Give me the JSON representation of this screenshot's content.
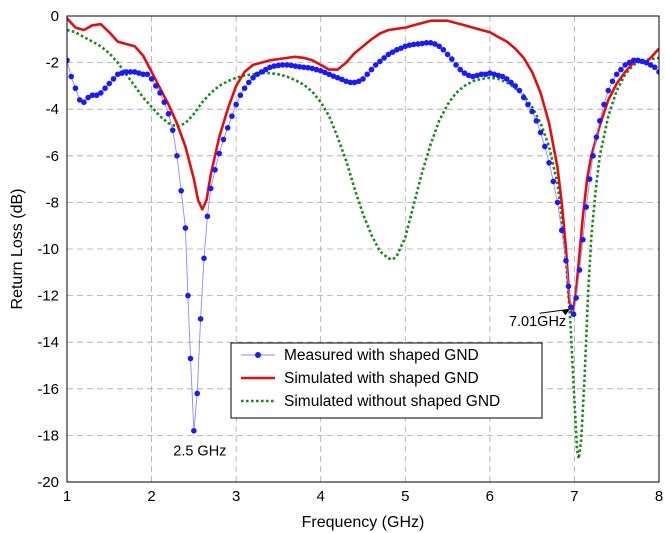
{
  "chart_data": {
    "type": "line",
    "xlabel": "Frequency (GHz)",
    "ylabel": "Return Loss (dB)",
    "xlim": [
      1,
      8
    ],
    "ylim": [
      -20,
      0
    ],
    "xticks": [
      1,
      2,
      3,
      4,
      5,
      6,
      7,
      8
    ],
    "yticks": [
      0,
      -2,
      -4,
      -6,
      -8,
      -10,
      -12,
      -14,
      -16,
      -18,
      -20
    ],
    "grid": true,
    "legend_position": "bottom-center",
    "series": [
      {
        "name": "Measured with shaped GND",
        "style": "dots-thin-line",
        "color": "#1a1aff",
        "points": [
          [
            1.0,
            -1.9
          ],
          [
            1.05,
            -2.6
          ],
          [
            1.1,
            -3.1
          ],
          [
            1.15,
            -3.6
          ],
          [
            1.2,
            -3.7
          ],
          [
            1.25,
            -3.5
          ],
          [
            1.3,
            -3.4
          ],
          [
            1.35,
            -3.4
          ],
          [
            1.4,
            -3.3
          ],
          [
            1.45,
            -3.1
          ],
          [
            1.5,
            -2.9
          ],
          [
            1.55,
            -2.7
          ],
          [
            1.6,
            -2.5
          ],
          [
            1.65,
            -2.45
          ],
          [
            1.7,
            -2.4
          ],
          [
            1.75,
            -2.4
          ],
          [
            1.8,
            -2.4
          ],
          [
            1.85,
            -2.45
          ],
          [
            1.9,
            -2.5
          ],
          [
            1.95,
            -2.5
          ],
          [
            2.0,
            -2.7
          ],
          [
            2.05,
            -3.0
          ],
          [
            2.1,
            -3.3
          ],
          [
            2.15,
            -3.7
          ],
          [
            2.2,
            -4.2
          ],
          [
            2.25,
            -4.9
          ],
          [
            2.3,
            -6.0
          ],
          [
            2.35,
            -7.5
          ],
          [
            2.4,
            -9.1
          ],
          [
            2.43,
            -12.0
          ],
          [
            2.46,
            -14.7
          ],
          [
            2.5,
            -17.8
          ],
          [
            2.54,
            -16.2
          ],
          [
            2.58,
            -13.0
          ],
          [
            2.62,
            -10.4
          ],
          [
            2.66,
            -8.6
          ],
          [
            2.7,
            -7.4
          ],
          [
            2.75,
            -6.6
          ],
          [
            2.8,
            -5.9
          ],
          [
            2.85,
            -5.3
          ],
          [
            2.9,
            -4.8
          ],
          [
            2.95,
            -4.3
          ],
          [
            3.0,
            -3.8
          ],
          [
            3.05,
            -3.4
          ],
          [
            3.1,
            -3.1
          ],
          [
            3.15,
            -2.85
          ],
          [
            3.2,
            -2.65
          ],
          [
            3.25,
            -2.5
          ],
          [
            3.3,
            -2.4
          ],
          [
            3.35,
            -2.3
          ],
          [
            3.4,
            -2.2
          ],
          [
            3.45,
            -2.15
          ],
          [
            3.5,
            -2.12
          ],
          [
            3.55,
            -2.1
          ],
          [
            3.6,
            -2.1
          ],
          [
            3.65,
            -2.12
          ],
          [
            3.7,
            -2.15
          ],
          [
            3.75,
            -2.18
          ],
          [
            3.8,
            -2.2
          ],
          [
            3.85,
            -2.22
          ],
          [
            3.9,
            -2.25
          ],
          [
            3.95,
            -2.3
          ],
          [
            4.0,
            -2.35
          ],
          [
            4.05,
            -2.42
          ],
          [
            4.1,
            -2.5
          ],
          [
            4.15,
            -2.58
          ],
          [
            4.2,
            -2.65
          ],
          [
            4.25,
            -2.72
          ],
          [
            4.3,
            -2.8
          ],
          [
            4.35,
            -2.85
          ],
          [
            4.4,
            -2.85
          ],
          [
            4.45,
            -2.8
          ],
          [
            4.5,
            -2.7
          ],
          [
            4.55,
            -2.5
          ],
          [
            4.6,
            -2.3
          ],
          [
            4.65,
            -2.1
          ],
          [
            4.7,
            -1.95
          ],
          [
            4.75,
            -1.8
          ],
          [
            4.8,
            -1.65
          ],
          [
            4.85,
            -1.55
          ],
          [
            4.9,
            -1.45
          ],
          [
            4.95,
            -1.38
          ],
          [
            5.0,
            -1.3
          ],
          [
            5.05,
            -1.25
          ],
          [
            5.1,
            -1.22
          ],
          [
            5.15,
            -1.2
          ],
          [
            5.2,
            -1.18
          ],
          [
            5.25,
            -1.15
          ],
          [
            5.3,
            -1.15
          ],
          [
            5.35,
            -1.2
          ],
          [
            5.4,
            -1.3
          ],
          [
            5.45,
            -1.45
          ],
          [
            5.5,
            -1.65
          ],
          [
            5.55,
            -1.85
          ],
          [
            5.6,
            -2.1
          ],
          [
            5.65,
            -2.3
          ],
          [
            5.7,
            -2.45
          ],
          [
            5.75,
            -2.55
          ],
          [
            5.8,
            -2.6
          ],
          [
            5.85,
            -2.55
          ],
          [
            5.9,
            -2.5
          ],
          [
            5.95,
            -2.5
          ],
          [
            6.0,
            -2.45
          ],
          [
            6.05,
            -2.5
          ],
          [
            6.1,
            -2.55
          ],
          [
            6.15,
            -2.6
          ],
          [
            6.2,
            -2.7
          ],
          [
            6.25,
            -2.85
          ],
          [
            6.3,
            -3.0
          ],
          [
            6.35,
            -3.2
          ],
          [
            6.4,
            -3.5
          ],
          [
            6.45,
            -3.8
          ],
          [
            6.5,
            -4.1
          ],
          [
            6.55,
            -4.5
          ],
          [
            6.6,
            -5.0
          ],
          [
            6.65,
            -5.6
          ],
          [
            6.7,
            -6.3
          ],
          [
            6.75,
            -7.1
          ],
          [
            6.8,
            -8.0
          ],
          [
            6.85,
            -9.2
          ],
          [
            6.9,
            -10.5
          ],
          [
            6.93,
            -11.6
          ],
          [
            6.96,
            -12.5
          ],
          [
            6.99,
            -12.8
          ],
          [
            7.02,
            -12.1
          ],
          [
            7.06,
            -10.9
          ],
          [
            7.1,
            -9.6
          ],
          [
            7.14,
            -8.2
          ],
          [
            7.18,
            -7.0
          ],
          [
            7.22,
            -6.0
          ],
          [
            7.26,
            -5.2
          ],
          [
            7.3,
            -4.5
          ],
          [
            7.35,
            -3.8
          ],
          [
            7.4,
            -3.2
          ],
          [
            7.45,
            -2.8
          ],
          [
            7.5,
            -2.5
          ],
          [
            7.55,
            -2.3
          ],
          [
            7.6,
            -2.1
          ],
          [
            7.65,
            -2.0
          ],
          [
            7.7,
            -1.9
          ],
          [
            7.75,
            -1.9
          ],
          [
            7.8,
            -1.95
          ],
          [
            7.85,
            -2.0
          ],
          [
            7.9,
            -2.1
          ],
          [
            7.95,
            -2.2
          ],
          [
            8.0,
            -2.4
          ]
        ]
      },
      {
        "name": "Simulated with shaped GND",
        "style": "solid",
        "color": "#e01010",
        "points": [
          [
            1.0,
            -0.1
          ],
          [
            1.1,
            -0.5
          ],
          [
            1.2,
            -0.6
          ],
          [
            1.3,
            -0.4
          ],
          [
            1.4,
            -0.35
          ],
          [
            1.5,
            -0.7
          ],
          [
            1.6,
            -1.1
          ],
          [
            1.7,
            -1.2
          ],
          [
            1.8,
            -1.3
          ],
          [
            1.9,
            -1.7
          ],
          [
            2.0,
            -2.4
          ],
          [
            2.1,
            -3.1
          ],
          [
            2.2,
            -3.8
          ],
          [
            2.3,
            -4.6
          ],
          [
            2.4,
            -5.6
          ],
          [
            2.5,
            -7.0
          ],
          [
            2.55,
            -7.9
          ],
          [
            2.6,
            -8.3
          ],
          [
            2.65,
            -7.9
          ],
          [
            2.7,
            -6.8
          ],
          [
            2.8,
            -5.2
          ],
          [
            2.9,
            -4.0
          ],
          [
            3.0,
            -3.0
          ],
          [
            3.1,
            -2.4
          ],
          [
            3.2,
            -2.1
          ],
          [
            3.3,
            -2.0
          ],
          [
            3.4,
            -1.9
          ],
          [
            3.5,
            -1.85
          ],
          [
            3.6,
            -1.8
          ],
          [
            3.7,
            -1.75
          ],
          [
            3.8,
            -1.8
          ],
          [
            3.9,
            -1.9
          ],
          [
            4.0,
            -2.1
          ],
          [
            4.1,
            -2.3
          ],
          [
            4.2,
            -2.3
          ],
          [
            4.3,
            -2.0
          ],
          [
            4.4,
            -1.6
          ],
          [
            4.5,
            -1.3
          ],
          [
            4.6,
            -1.0
          ],
          [
            4.7,
            -0.75
          ],
          [
            4.8,
            -0.6
          ],
          [
            4.9,
            -0.55
          ],
          [
            5.0,
            -0.5
          ],
          [
            5.1,
            -0.4
          ],
          [
            5.2,
            -0.3
          ],
          [
            5.3,
            -0.2
          ],
          [
            5.4,
            -0.2
          ],
          [
            5.5,
            -0.2
          ],
          [
            5.6,
            -0.3
          ],
          [
            5.7,
            -0.4
          ],
          [
            5.8,
            -0.5
          ],
          [
            5.9,
            -0.6
          ],
          [
            6.0,
            -0.7
          ],
          [
            6.1,
            -0.9
          ],
          [
            6.2,
            -1.1
          ],
          [
            6.3,
            -1.4
          ],
          [
            6.4,
            -1.8
          ],
          [
            6.5,
            -2.4
          ],
          [
            6.6,
            -3.3
          ],
          [
            6.7,
            -4.6
          ],
          [
            6.8,
            -6.5
          ],
          [
            6.85,
            -8.0
          ],
          [
            6.9,
            -10.0
          ],
          [
            6.94,
            -12.2
          ],
          [
            6.98,
            -12.8
          ],
          [
            7.02,
            -11.8
          ],
          [
            7.06,
            -10.2
          ],
          [
            7.1,
            -8.6
          ],
          [
            7.15,
            -7.0
          ],
          [
            7.2,
            -6.0
          ],
          [
            7.3,
            -4.7
          ],
          [
            7.4,
            -3.6
          ],
          [
            7.5,
            -2.9
          ],
          [
            7.6,
            -2.4
          ],
          [
            7.7,
            -2.0
          ],
          [
            7.8,
            -1.9
          ],
          [
            7.85,
            -2.0
          ],
          [
            7.9,
            -1.8
          ],
          [
            7.95,
            -1.6
          ],
          [
            8.0,
            -1.4
          ]
        ]
      },
      {
        "name": "Simulated without shaped GND",
        "style": "dotted",
        "color": "#1a8a1a",
        "points": [
          [
            1.0,
            -0.6
          ],
          [
            1.1,
            -0.7
          ],
          [
            1.2,
            -0.9
          ],
          [
            1.3,
            -1.1
          ],
          [
            1.4,
            -1.3
          ],
          [
            1.5,
            -1.6
          ],
          [
            1.6,
            -2.0
          ],
          [
            1.7,
            -2.5
          ],
          [
            1.8,
            -3.0
          ],
          [
            1.9,
            -3.5
          ],
          [
            2.0,
            -3.9
          ],
          [
            2.1,
            -4.3
          ],
          [
            2.2,
            -4.6
          ],
          [
            2.3,
            -4.75
          ],
          [
            2.4,
            -4.6
          ],
          [
            2.5,
            -4.2
          ],
          [
            2.6,
            -3.7
          ],
          [
            2.7,
            -3.3
          ],
          [
            2.8,
            -3.0
          ],
          [
            2.9,
            -2.8
          ],
          [
            3.0,
            -2.65
          ],
          [
            3.1,
            -2.55
          ],
          [
            3.2,
            -2.5
          ],
          [
            3.3,
            -2.45
          ],
          [
            3.4,
            -2.45
          ],
          [
            3.5,
            -2.5
          ],
          [
            3.6,
            -2.6
          ],
          [
            3.7,
            -2.75
          ],
          [
            3.8,
            -2.95
          ],
          [
            3.9,
            -3.25
          ],
          [
            4.0,
            -3.7
          ],
          [
            4.1,
            -4.3
          ],
          [
            4.2,
            -5.2
          ],
          [
            4.3,
            -6.2
          ],
          [
            4.4,
            -7.4
          ],
          [
            4.5,
            -8.5
          ],
          [
            4.6,
            -9.4
          ],
          [
            4.7,
            -10.1
          ],
          [
            4.8,
            -10.4
          ],
          [
            4.85,
            -10.45
          ],
          [
            4.9,
            -10.3
          ],
          [
            5.0,
            -9.5
          ],
          [
            5.1,
            -8.1
          ],
          [
            5.2,
            -6.7
          ],
          [
            5.3,
            -5.5
          ],
          [
            5.4,
            -4.5
          ],
          [
            5.5,
            -3.8
          ],
          [
            5.6,
            -3.3
          ],
          [
            5.7,
            -3.0
          ],
          [
            5.8,
            -2.8
          ],
          [
            5.9,
            -2.7
          ],
          [
            6.0,
            -2.65
          ],
          [
            6.1,
            -2.7
          ],
          [
            6.2,
            -2.85
          ],
          [
            6.3,
            -3.1
          ],
          [
            6.4,
            -3.4
          ],
          [
            6.5,
            -3.9
          ],
          [
            6.6,
            -4.6
          ],
          [
            6.7,
            -5.6
          ],
          [
            6.8,
            -7.2
          ],
          [
            6.85,
            -8.6
          ],
          [
            6.9,
            -10.5
          ],
          [
            6.95,
            -13.0
          ],
          [
            7.0,
            -16.5
          ],
          [
            7.03,
            -18.6
          ],
          [
            7.05,
            -19.0
          ],
          [
            7.08,
            -18.2
          ],
          [
            7.12,
            -15.5
          ],
          [
            7.16,
            -12.0
          ],
          [
            7.2,
            -9.5
          ],
          [
            7.25,
            -7.5
          ],
          [
            7.3,
            -6.0
          ],
          [
            7.4,
            -4.3
          ],
          [
            7.5,
            -3.2
          ],
          [
            7.6,
            -2.5
          ],
          [
            7.7,
            -2.1
          ],
          [
            7.8,
            -1.9
          ],
          [
            7.9,
            -1.85
          ],
          [
            8.0,
            -1.8
          ]
        ]
      }
    ],
    "annotations": [
      {
        "text": "2.5 GHz",
        "x": 2.5,
        "y": -17.8
      },
      {
        "text": "7.01GHz",
        "x": 6.99,
        "y": -12.8,
        "arrow": true
      }
    ]
  }
}
